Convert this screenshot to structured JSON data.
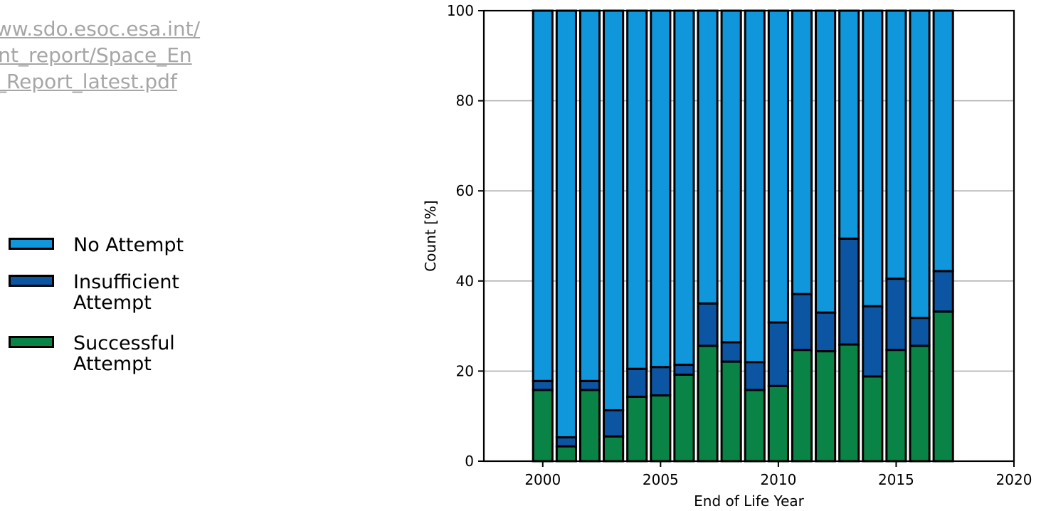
{
  "source_link": {
    "lines": [
      "ww.sdo.esoc.esa.int/",
      "ent_report/Space_En",
      "t_Report_latest.pdf"
    ]
  },
  "legend": {
    "items": [
      {
        "label": "No Attempt",
        "color": "#0f96db"
      },
      {
        "label": "Insufficient\nAttempt",
        "color": "#0c55a2"
      },
      {
        "label": "Successful\nAttempt",
        "color": "#0a8446"
      }
    ]
  },
  "chart_data": {
    "type": "bar",
    "stacked": true,
    "xlabel": "End of Life Year",
    "ylabel": "Count [%]",
    "xlim": [
      1997.5,
      2020
    ],
    "ylim": [
      0,
      100
    ],
    "xticks": [
      2000,
      2005,
      2010,
      2015,
      2020
    ],
    "yticks": [
      0,
      20,
      40,
      60,
      80,
      100
    ],
    "grid": "y",
    "x": [
      2000,
      2001,
      2002,
      2003,
      2004,
      2005,
      2006,
      2007,
      2008,
      2009,
      2010,
      2011,
      2012,
      2013,
      2014,
      2015,
      2016,
      2017
    ],
    "series": [
      {
        "name": "Successful Attempt",
        "color": "#0a8446",
        "values": [
          15.8,
          3.3,
          15.8,
          5.5,
          14.3,
          14.6,
          19.2,
          25.6,
          22.1,
          15.8,
          16.7,
          24.7,
          24.4,
          25.9,
          18.8,
          24.7,
          25.6,
          33.2
        ]
      },
      {
        "name": "Insufficient Attempt",
        "color": "#0c55a2",
        "values": [
          2.0,
          2.0,
          2.0,
          5.8,
          6.2,
          6.3,
          2.2,
          9.4,
          4.3,
          6.2,
          14.1,
          12.4,
          8.6,
          23.5,
          15.6,
          15.8,
          6.2,
          9.0
        ]
      },
      {
        "name": "No Attempt",
        "color": "#0f96db",
        "values": [
          82.2,
          94.7,
          82.2,
          88.7,
          79.5,
          79.1,
          78.6,
          65.0,
          73.6,
          78.0,
          69.2,
          62.9,
          67.0,
          50.6,
          65.6,
          59.5,
          68.2,
          57.8
        ]
      }
    ]
  }
}
